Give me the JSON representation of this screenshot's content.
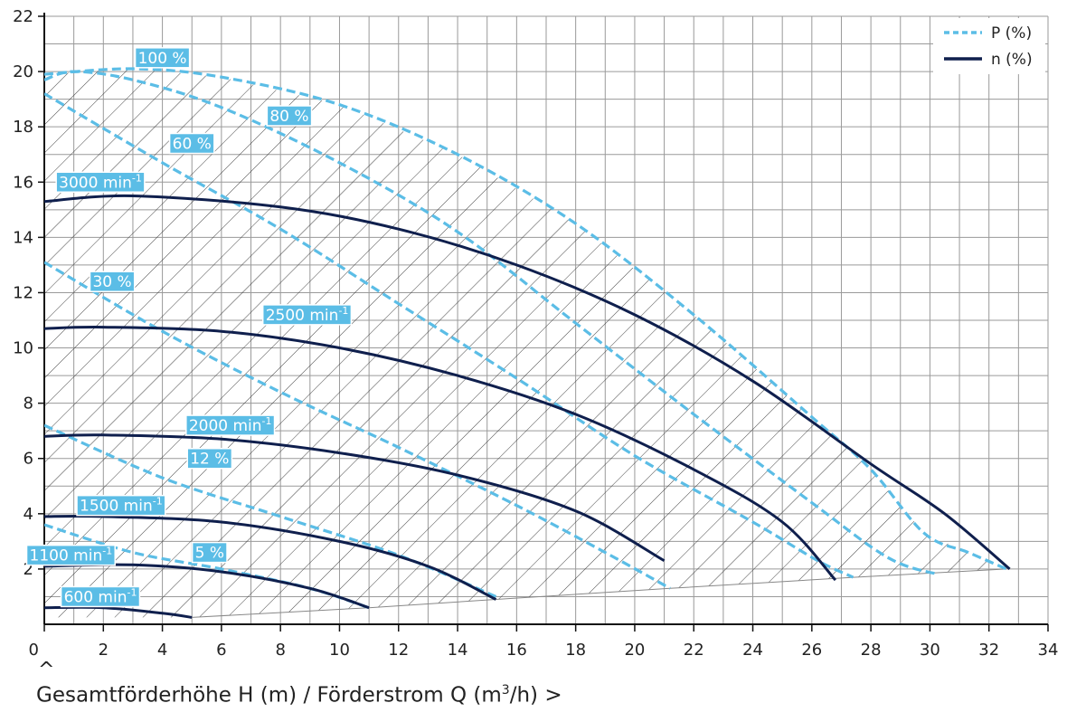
{
  "chart_data": {
    "type": "line",
    "xlabel": "Gesamtförderhöhe H (m) / Förderstrom Q (m³/h)",
    "xlabel_parts": [
      "Gesamtförderhöhe H (m) / Förderstrom Q (m",
      "3",
      "/h)"
    ],
    "xlim": [
      0,
      34
    ],
    "ylim": [
      0,
      22
    ],
    "x_ticks": [
      "0",
      "2",
      "4",
      "6",
      "8",
      "10",
      "12",
      "14",
      "16",
      "18",
      "20",
      "22",
      "24",
      "26",
      "28",
      "30",
      "32",
      "34"
    ],
    "y_ticks": [
      "2",
      "4",
      "6",
      "8",
      "10",
      "12",
      "14",
      "16",
      "18",
      "20",
      "22"
    ],
    "grid": true,
    "legend_position": "top-right",
    "legend": [
      {
        "label": "P (%)",
        "style": "dashed",
        "color": "#5bbde6"
      },
      {
        "label": "n (%)",
        "style": "solid",
        "color": "#0f1f4d"
      }
    ],
    "speed_curves": [
      {
        "name": "3000 min-1",
        "label": "3000 min",
        "sup": "-1",
        "points": [
          [
            0,
            15.3
          ],
          [
            3,
            15.5
          ],
          [
            8,
            15.1
          ],
          [
            12,
            14.3
          ],
          [
            16,
            13.0
          ],
          [
            20,
            11.2
          ],
          [
            24,
            8.8
          ],
          [
            28,
            5.8
          ],
          [
            30.5,
            4.0
          ],
          [
            32.7,
            2.0
          ]
        ]
      },
      {
        "name": "2500 min-1",
        "label": "2500 min",
        "sup": "-1",
        "points": [
          [
            0,
            10.7
          ],
          [
            2,
            10.75
          ],
          [
            6,
            10.6
          ],
          [
            10,
            10.0
          ],
          [
            14,
            9.0
          ],
          [
            18,
            7.6
          ],
          [
            22,
            5.6
          ],
          [
            25,
            3.7
          ],
          [
            26.8,
            1.6
          ]
        ]
      },
      {
        "name": "2000 min-1",
        "label": "2000 min",
        "sup": "-1",
        "points": [
          [
            0,
            6.8
          ],
          [
            2,
            6.85
          ],
          [
            6,
            6.7
          ],
          [
            10,
            6.2
          ],
          [
            14,
            5.4
          ],
          [
            18,
            4.1
          ],
          [
            21,
            2.3
          ]
        ]
      },
      {
        "name": "1500 min-1",
        "label": "1500 min",
        "sup": "-1",
        "points": [
          [
            0,
            3.9
          ],
          [
            2,
            3.9
          ],
          [
            6,
            3.7
          ],
          [
            10,
            3.0
          ],
          [
            13,
            2.1
          ],
          [
            15.3,
            0.9
          ]
        ]
      },
      {
        "name": "1100 min-1",
        "label": "1100 min",
        "sup": "-1",
        "points": [
          [
            0,
            2.1
          ],
          [
            3,
            2.15
          ],
          [
            6,
            1.9
          ],
          [
            9,
            1.3
          ],
          [
            11,
            0.6
          ]
        ]
      },
      {
        "name": "600 min-1",
        "label": "600 min",
        "sup": "-1",
        "points": [
          [
            0,
            0.6
          ],
          [
            2,
            0.6
          ],
          [
            4,
            0.4
          ],
          [
            5,
            0.25
          ]
        ]
      }
    ],
    "power_curves": [
      {
        "name": "100 %",
        "label": "100 %",
        "points": [
          [
            0,
            19.9
          ],
          [
            3,
            20.1
          ],
          [
            6,
            19.8
          ],
          [
            10,
            18.8
          ],
          [
            14,
            17.0
          ],
          [
            18,
            14.5
          ],
          [
            22,
            11.2
          ],
          [
            26,
            7.5
          ],
          [
            28,
            5.6
          ],
          [
            29.8,
            3.3
          ],
          [
            31.3,
            2.6
          ],
          [
            32.6,
            2.0
          ]
        ]
      },
      {
        "name": "80 %",
        "label": "80 %",
        "points": [
          [
            0,
            19.7
          ],
          [
            1,
            20.0
          ],
          [
            3,
            19.7
          ],
          [
            6,
            18.7
          ],
          [
            10,
            16.7
          ],
          [
            14,
            14.2
          ],
          [
            18,
            10.9
          ],
          [
            22,
            7.6
          ],
          [
            26,
            4.4
          ],
          [
            28.6,
            2.4
          ],
          [
            30.3,
            1.8
          ]
        ]
      },
      {
        "name": "60 %",
        "label": "60 %",
        "points": [
          [
            0,
            19.2
          ],
          [
            4,
            16.7
          ],
          [
            8,
            14.3
          ],
          [
            12,
            11.6
          ],
          [
            16,
            8.9
          ],
          [
            20,
            6.1
          ],
          [
            24,
            3.7
          ],
          [
            26.2,
            2.3
          ],
          [
            27.4,
            1.7
          ]
        ]
      },
      {
        "name": "30 %",
        "label": "30 %",
        "points": [
          [
            0,
            13.1
          ],
          [
            4,
            10.6
          ],
          [
            8,
            8.4
          ],
          [
            12,
            6.4
          ],
          [
            16,
            4.3
          ],
          [
            19,
            2.6
          ],
          [
            21.2,
            1.3
          ]
        ]
      },
      {
        "name": "12 %",
        "label": "12 %",
        "points": [
          [
            0,
            7.2
          ],
          [
            4,
            5.3
          ],
          [
            8,
            3.9
          ],
          [
            12,
            2.5
          ],
          [
            15.3,
            1.0
          ]
        ]
      },
      {
        "name": "5 %",
        "label": "5 %",
        "points": [
          [
            0,
            3.6
          ],
          [
            3,
            2.6
          ],
          [
            6,
            2.0
          ],
          [
            9,
            1.3
          ],
          [
            11,
            0.6
          ]
        ]
      }
    ],
    "annotations": [
      {
        "text": "100 %",
        "x": 4.0,
        "y": 20.5
      },
      {
        "text": "80 %",
        "x": 8.3,
        "y": 18.4
      },
      {
        "text": "60 %",
        "x": 5.0,
        "y": 17.4
      },
      {
        "text": "3000 min",
        "sup": "-1",
        "x": 1.9,
        "y": 16.0
      },
      {
        "text": "30 %",
        "x": 2.3,
        "y": 12.4
      },
      {
        "text": "2500 min",
        "sup": "-1",
        "x": 8.9,
        "y": 11.2
      },
      {
        "text": "2000 min",
        "sup": "-1",
        "x": 6.3,
        "y": 7.2
      },
      {
        "text": "12 %",
        "x": 5.6,
        "y": 6.0
      },
      {
        "text": "1500 min",
        "sup": "-1",
        "x": 2.6,
        "y": 4.3
      },
      {
        "text": "5 %",
        "x": 5.6,
        "y": 2.6
      },
      {
        "text": "1100 min",
        "sup": "-1",
        "x": 0.9,
        "y": 2.5
      },
      {
        "text": "600 min",
        "sup": "-1",
        "x": 1.9,
        "y": 1.0
      }
    ],
    "hatched_region": "operating range between 100 % power curve, 3000 min-1 curve and baseline"
  },
  "colors": {
    "power": "#5bbde6",
    "speed": "#0f1f4d",
    "grid": "#9a9a9a",
    "label_bg": "#5bbde6",
    "hatch": "#333333"
  }
}
